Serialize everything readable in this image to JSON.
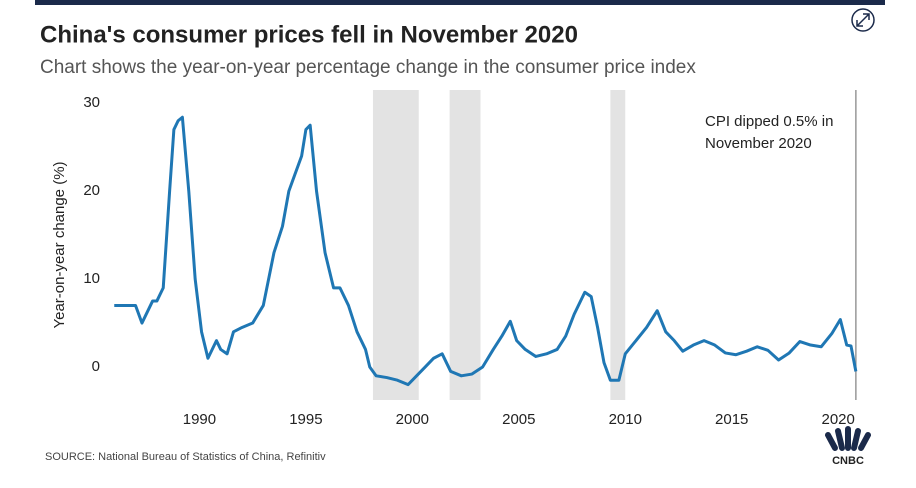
{
  "chart_data": {
    "type": "line",
    "title": "China's consumer prices fell in November 2020",
    "subtitle": "Chart shows the year-on-year percentage change in the consumer price index",
    "y_label": "Year-on-year change (%)",
    "annotation": [
      "CPI dipped 0.5% in",
      "November 2020"
    ],
    "source": "SOURCE: National Bureau of Statistics of China, Refinitiv",
    "logo_text": "CNBC",
    "xlim": [
      1985.8,
      2021.4
    ],
    "ylim": [
      -3.75,
      31.5
    ],
    "xticks": [
      1990,
      1995,
      2000,
      2005,
      2010,
      2015,
      2020
    ],
    "yticks": [
      0,
      10,
      20,
      30
    ],
    "shaded_periods": [
      [
        1998.15,
        2000.3
      ],
      [
        2001.75,
        2003.2
      ],
      [
        2009.3,
        2010.0
      ]
    ],
    "marker_x": 2020.83,
    "series": [
      {
        "color": "#1f77b4",
        "x": [
          1986.0,
          1987.0,
          1987.3,
          1987.8,
          1988.0,
          1988.3,
          1988.6,
          1988.8,
          1989.0,
          1989.2,
          1989.5,
          1989.8,
          1990.1,
          1990.4,
          1990.8,
          1991.0,
          1991.3,
          1991.6,
          1992.0,
          1992.5,
          1993.0,
          1993.5,
          1993.9,
          1994.2,
          1994.5,
          1994.8,
          1995.0,
          1995.2,
          1995.5,
          1995.9,
          1996.3,
          1996.6,
          1997.0,
          1997.4,
          1997.8,
          1998.0,
          1998.3,
          1998.8,
          1999.3,
          1999.8,
          2000.2,
          2000.6,
          2001.0,
          2001.4,
          2001.8,
          2002.3,
          2002.8,
          2003.3,
          2003.8,
          2004.2,
          2004.6,
          2004.9,
          2005.3,
          2005.8,
          2006.3,
          2006.8,
          2007.2,
          2007.6,
          2008.1,
          2008.4,
          2008.7,
          2009.0,
          2009.3,
          2009.7,
          2010.0,
          2010.5,
          2011.0,
          2011.5,
          2011.9,
          2012.3,
          2012.7,
          2013.2,
          2013.7,
          2014.2,
          2014.7,
          2015.2,
          2015.7,
          2016.2,
          2016.7,
          2017.2,
          2017.7,
          2018.2,
          2018.7,
          2019.2,
          2019.7,
          2020.1,
          2020.4,
          2020.6,
          2020.83
        ],
        "values": [
          7,
          7,
          5,
          7.5,
          7.5,
          9,
          20,
          27,
          28,
          28.4,
          20,
          10,
          4,
          1,
          3,
          2,
          1.5,
          4,
          4.5,
          5,
          7,
          13,
          16,
          20,
          22,
          24,
          27,
          27.5,
          20,
          13,
          9,
          9,
          7,
          4,
          2,
          0,
          -1,
          -1.2,
          -1.5,
          -2,
          -1,
          0,
          1,
          1.5,
          -0.5,
          -1,
          -0.8,
          0,
          2,
          3.5,
          5.2,
          3,
          2,
          1.2,
          1.5,
          2,
          3.5,
          6,
          8.5,
          8,
          4.5,
          0.5,
          -1.5,
          -1.5,
          1.5,
          3,
          4.5,
          6.4,
          4,
          3,
          1.8,
          2.5,
          3,
          2.5,
          1.6,
          1.4,
          1.8,
          2.3,
          1.9,
          0.8,
          1.6,
          2.9,
          2.5,
          2.3,
          3.8,
          5.4,
          2.5,
          2.4,
          -0.5
        ]
      }
    ]
  }
}
